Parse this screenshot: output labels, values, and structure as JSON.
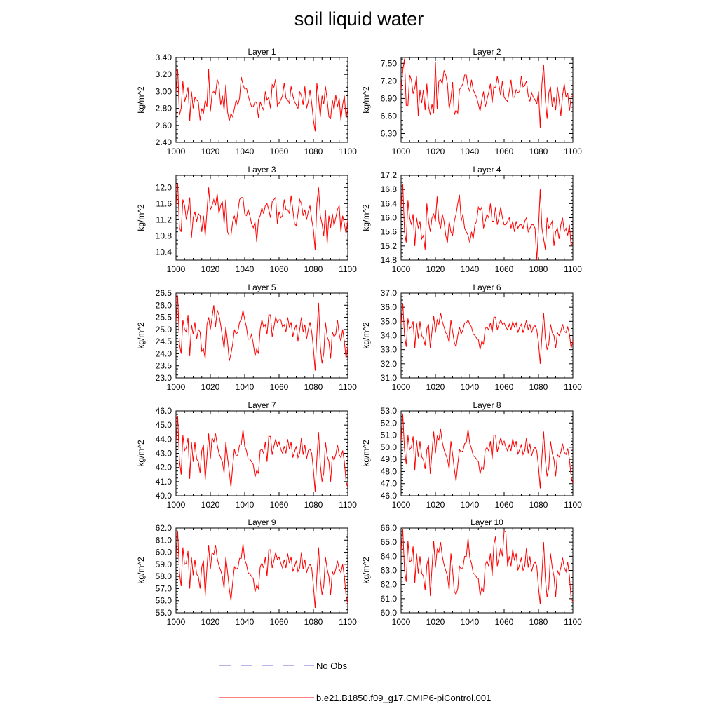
{
  "title": "soil liquid water",
  "chart_data": {
    "type": "line",
    "xlim": [
      1000,
      1100
    ],
    "xticks": [
      1000,
      1020,
      1040,
      1060,
      1080,
      1100
    ],
    "ylabel": "kg/m^2",
    "series_color": "#ff0000",
    "obs_color": "#6b6bd6",
    "panels": [
      {
        "title": "Layer 1",
        "ylim": [
          2.4,
          3.4
        ],
        "yticks": [
          "2.40",
          "2.60",
          "2.80",
          "3.00",
          "3.20",
          "3.40"
        ],
        "x_start": 1000,
        "values": [
          2.98,
          3.26,
          2.72,
          2.8,
          3.12,
          2.88,
          2.95,
          3.05,
          2.65,
          3.0,
          2.8,
          2.93,
          2.9,
          2.88,
          2.66,
          2.8,
          2.74,
          2.9,
          2.82,
          3.26,
          2.76,
          2.98,
          3.0,
          2.97,
          3.14,
          3.08,
          2.84,
          2.95,
          2.78,
          3.08,
          2.76,
          2.65,
          2.74,
          2.7,
          2.8,
          2.9,
          2.84,
          2.92,
          3.17,
          3.08,
          3.03,
          3.04,
          2.95,
          2.88,
          2.82,
          2.82,
          2.88,
          2.86,
          2.69,
          2.88,
          2.82,
          2.78,
          3.0,
          2.9,
          2.93,
          2.8,
          3.08,
          3.05,
          3.15,
          2.83,
          2.86,
          2.9,
          2.95,
          3.1,
          2.92,
          2.9,
          2.86,
          3.06,
          2.95,
          2.88,
          2.84,
          2.8,
          3.0,
          2.95,
          2.84,
          3.06,
          2.8,
          2.88,
          3.02,
          2.86,
          2.66,
          2.53,
          3.1,
          2.92,
          2.7,
          2.95,
          2.85,
          3.06,
          2.9,
          2.7,
          2.68,
          2.9,
          2.78,
          2.96,
          2.82,
          2.92,
          2.66,
          2.84,
          2.95,
          2.68,
          2.8
        ]
      },
      {
        "title": "Layer 2",
        "ylim": [
          6.15,
          7.6
        ],
        "yticks": [
          "6.30",
          "6.60",
          "6.90",
          "7.20",
          "7.50"
        ],
        "x_start": 1000,
        "values": [
          7.05,
          7.38,
          7.58,
          6.78,
          6.78,
          7.3,
          7.22,
          6.98,
          7.08,
          7.28,
          6.6,
          7.05,
          6.82,
          7.05,
          6.7,
          7.15,
          6.76,
          6.62,
          6.8,
          6.65,
          7.52,
          6.72,
          7.2,
          7.22,
          7.15,
          7.38,
          7.3,
          7.15,
          6.72,
          6.9,
          7.18,
          6.62,
          6.7,
          6.65,
          7.05,
          7.1,
          7.15,
          7.3,
          7.3,
          7.1,
          7.02,
          7.22,
          7.05,
          6.98,
          6.92,
          6.8,
          6.68,
          6.88,
          7.02,
          6.75,
          6.88,
          7.0,
          7.15,
          6.82,
          7.1,
          7.08,
          7.28,
          7.12,
          6.95,
          7.2,
          6.92,
          6.88,
          6.85,
          7.02,
          7.22,
          6.92,
          6.92,
          7.05,
          7.0,
          7.02,
          7.28,
          7.1,
          7.12,
          7.2,
          6.95,
          6.85,
          7.0,
          6.92,
          6.88,
          6.8,
          7.02,
          6.4,
          7.15,
          7.48,
          6.88,
          6.55,
          7.0,
          7.1,
          6.75,
          6.92,
          6.7,
          7.1,
          6.88,
          6.6,
          6.95,
          7.15,
          6.92,
          7.0,
          6.68,
          6.92,
          6.95
        ]
      },
      {
        "title": "Layer 3",
        "ylim": [
          10.2,
          12.3
        ],
        "yticks": [
          "10.4",
          "10.8",
          "11.2",
          "11.6",
          "12.0"
        ],
        "x_start": 1000,
        "values": [
          11.55,
          12.1,
          11.0,
          10.9,
          11.7,
          11.55,
          11.2,
          11.45,
          11.75,
          10.75,
          11.25,
          11.4,
          11.15,
          11.35,
          11.3,
          10.9,
          11.3,
          10.8,
          11.4,
          12.0,
          11.45,
          11.55,
          11.7,
          11.55,
          11.85,
          11.35,
          11.55,
          11.65,
          11.1,
          11.7,
          10.9,
          10.8,
          10.8,
          11.15,
          11.3,
          11.05,
          11.4,
          11.7,
          11.75,
          11.75,
          11.35,
          11.3,
          11.45,
          11.3,
          11.1,
          11.0,
          11.15,
          10.65,
          11.2,
          11.3,
          11.5,
          11.35,
          11.55,
          11.6,
          11.45,
          11.25,
          11.65,
          11.7,
          11.75,
          11.1,
          11.4,
          11.25,
          11.3,
          11.7,
          11.45,
          11.45,
          11.35,
          11.8,
          11.45,
          11.1,
          11.05,
          11.35,
          11.7,
          11.6,
          11.3,
          11.45,
          11.2,
          11.4,
          11.55,
          11.2,
          10.95,
          10.45,
          11.6,
          12.0,
          11.3,
          11.1,
          10.8,
          11.45,
          10.6,
          11.3,
          11.0,
          11.35,
          11.05,
          11.25,
          11.45,
          11.55,
          10.9,
          11.3,
          11.1,
          10.85,
          11.2
        ]
      },
      {
        "title": "Layer 4",
        "ylim": [
          14.8,
          17.2
        ],
        "yticks": [
          "14.8",
          "15.2",
          "15.6",
          "16.0",
          "16.4",
          "16.8",
          "17.2"
        ],
        "x_start": 1000,
        "values": [
          16.3,
          16.95,
          15.6,
          15.3,
          16.5,
          16.0,
          15.8,
          16.1,
          15.2,
          16.0,
          15.7,
          15.9,
          15.4,
          15.5,
          15.1,
          16.4,
          15.9,
          15.6,
          16.0,
          16.1,
          15.9,
          16.6,
          15.9,
          15.7,
          16.1,
          15.9,
          15.5,
          15.3,
          15.9,
          15.6,
          15.5,
          15.9,
          16.1,
          16.4,
          16.65,
          15.9,
          16.1,
          15.7,
          15.6,
          15.5,
          15.3,
          15.6,
          15.4,
          15.8,
          15.9,
          16.3,
          16.2,
          16.3,
          15.7,
          15.9,
          16.1,
          16.0,
          16.4,
          15.9,
          15.9,
          16.3,
          15.8,
          16.0,
          16.3,
          16.0,
          15.8,
          15.8,
          15.9,
          16.0,
          15.7,
          15.9,
          15.6,
          15.9,
          15.7,
          15.8,
          15.8,
          15.7,
          15.9,
          16.0,
          15.6,
          15.7,
          15.8,
          15.8,
          15.7,
          14.8,
          15.7,
          16.8,
          15.7,
          15.4,
          15.1,
          16.0,
          15.7,
          15.8,
          15.9,
          15.2,
          15.6,
          15.7,
          15.4,
          15.8,
          16.0,
          15.6,
          15.7,
          15.5,
          15.8,
          15.2,
          15.3
        ]
      },
      {
        "title": "Layer 5",
        "ylim": [
          23.0,
          26.5
        ],
        "yticks": [
          "23.0",
          "23.5",
          "24.0",
          "24.5",
          "25.0",
          "25.5",
          "26.0",
          "26.5"
        ],
        "x_start": 1000,
        "values": [
          25.3,
          26.4,
          24.4,
          24.0,
          25.4,
          25.0,
          24.9,
          25.6,
          23.9,
          25.2,
          24.8,
          25.3,
          24.6,
          25.0,
          24.9,
          24.1,
          24.2,
          23.8,
          25.2,
          25.5,
          25.0,
          25.5,
          26.0,
          25.1,
          25.8,
          25.6,
          25.2,
          24.7,
          24.2,
          25.1,
          24.5,
          23.7,
          24.0,
          24.4,
          25.0,
          24.8,
          24.9,
          25.3,
          25.4,
          25.8,
          25.4,
          25.1,
          24.6,
          24.6,
          24.8,
          24.4,
          23.9,
          24.2,
          24.0,
          25.0,
          25.4,
          25.1,
          25.2,
          24.8,
          25.6,
          25.6,
          24.7,
          25.1,
          25.5,
          25.3,
          25.4,
          25.4,
          25.1,
          25.2,
          24.9,
          25.5,
          25.1,
          25.3,
          24.7,
          25.0,
          25.2,
          24.5,
          25.0,
          25.5,
          24.9,
          25.2,
          24.6,
          25.0,
          25.3,
          24.9,
          24.2,
          23.3,
          24.8,
          26.1,
          24.3,
          23.6,
          24.0,
          25.3,
          24.7,
          24.5,
          23.8,
          24.9,
          24.7,
          24.8,
          25.4,
          24.8,
          24.5,
          25.0,
          24.5,
          23.8,
          24.3
        ]
      },
      {
        "title": "Layer 6",
        "ylim": [
          31.0,
          37.0
        ],
        "yticks": [
          "31.0",
          "32.0",
          "33.0",
          "34.0",
          "35.0",
          "36.0",
          "37.0"
        ],
        "x_start": 1000,
        "values": [
          34.8,
          36.3,
          34.0,
          33.2,
          35.2,
          34.5,
          34.6,
          35.0,
          33.1,
          34.9,
          33.8,
          35.0,
          34.0,
          33.8,
          33.3,
          34.5,
          34.8,
          33.1,
          34.3,
          35.4,
          34.2,
          35.1,
          34.8,
          35.6,
          35.0,
          34.6,
          34.2,
          34.0,
          33.5,
          35.1,
          34.3,
          33.5,
          33.2,
          34.0,
          34.6,
          34.1,
          34.4,
          34.9,
          34.9,
          35.1,
          34.8,
          34.6,
          34.1,
          34.0,
          33.8,
          33.7,
          33.0,
          33.6,
          33.4,
          34.5,
          34.6,
          34.4,
          34.9,
          34.2,
          35.3,
          35.3,
          34.4,
          34.8,
          35.1,
          34.8,
          34.9,
          34.6,
          34.4,
          34.8,
          34.4,
          35.0,
          34.6,
          34.9,
          34.2,
          34.6,
          34.8,
          34.2,
          34.6,
          35.1,
          34.4,
          34.8,
          34.2,
          34.6,
          34.7,
          34.4,
          33.5,
          32.0,
          34.0,
          35.6,
          33.8,
          33.0,
          33.4,
          34.8,
          34.2,
          34.0,
          33.1,
          34.2,
          34.0,
          34.3,
          34.8,
          34.3,
          34.2,
          34.6,
          34.1,
          33.1,
          33.6
        ]
      },
      {
        "title": "Layer 7",
        "ylim": [
          40.0,
          46.0
        ],
        "yticks": [
          "40.0",
          "41.0",
          "42.0",
          "43.0",
          "44.0",
          "45.0",
          "46.0"
        ],
        "x_start": 1000,
        "values": [
          43.8,
          45.6,
          42.5,
          41.5,
          44.3,
          43.2,
          43.4,
          44.1,
          41.2,
          43.8,
          42.4,
          43.8,
          42.6,
          42.4,
          41.6,
          43.2,
          43.6,
          41.1,
          42.7,
          44.4,
          42.6,
          44.1,
          43.8,
          44.4,
          43.6,
          43.0,
          42.7,
          42.4,
          41.6,
          43.8,
          42.7,
          41.7,
          40.6,
          42.1,
          43.3,
          42.8,
          42.9,
          43.6,
          43.6,
          44.7,
          43.5,
          43.2,
          42.6,
          42.6,
          42.4,
          42.2,
          41.3,
          41.8,
          41.6,
          43.2,
          43.3,
          43.0,
          43.8,
          42.4,
          44.2,
          44.2,
          42.9,
          43.5,
          44.0,
          43.5,
          43.8,
          43.3,
          43.0,
          43.5,
          43.0,
          44.0,
          43.3,
          43.8,
          42.7,
          43.1,
          43.5,
          42.7,
          43.0,
          44.1,
          42.9,
          43.6,
          42.6,
          43.2,
          43.3,
          43.0,
          41.8,
          40.3,
          42.6,
          44.5,
          42.2,
          41.0,
          41.6,
          43.8,
          42.8,
          42.4,
          41.0,
          42.8,
          42.5,
          42.9,
          43.6,
          42.9,
          42.7,
          43.2,
          42.4,
          41.0,
          40.6
        ]
      },
      {
        "title": "Layer 8",
        "ylim": [
          46.0,
          53.0
        ],
        "yticks": [
          "46.0",
          "47.0",
          "48.0",
          "49.0",
          "50.0",
          "51.0",
          "52.0",
          "53.0"
        ],
        "x_start": 1000,
        "values": [
          50.5,
          52.7,
          49.8,
          48.6,
          51.0,
          49.8,
          50.0,
          50.9,
          48.1,
          50.6,
          49.2,
          50.5,
          49.2,
          49.0,
          48.2,
          49.8,
          50.2,
          47.8,
          49.6,
          51.3,
          49.5,
          50.9,
          50.6,
          51.5,
          50.4,
          49.8,
          49.4,
          49.0,
          48.2,
          50.5,
          49.4,
          48.2,
          47.2,
          48.6,
          49.8,
          49.6,
          49.7,
          50.3,
          50.4,
          51.5,
          50.3,
          49.9,
          49.3,
          49.2,
          49.0,
          48.8,
          47.8,
          48.4,
          48.2,
          49.8,
          50.0,
          49.7,
          50.5,
          49.0,
          51.0,
          51.0,
          49.6,
          50.2,
          50.8,
          50.2,
          50.5,
          50.0,
          49.7,
          50.2,
          49.7,
          50.7,
          50.0,
          50.5,
          49.4,
          49.8,
          50.2,
          49.4,
          49.7,
          50.8,
          49.5,
          50.3,
          49.3,
          49.8,
          50.0,
          49.7,
          48.4,
          46.6,
          49.2,
          51.3,
          48.9,
          47.6,
          48.3,
          50.5,
          49.5,
          49.0,
          47.6,
          49.4,
          49.2,
          49.6,
          50.3,
          49.6,
          49.4,
          49.9,
          49.0,
          47.6,
          47.0
        ]
      },
      {
        "title": "Layer 9",
        "ylim": [
          55.0,
          62.0
        ],
        "yticks": [
          "55.0",
          "56.0",
          "57.0",
          "58.0",
          "59.0",
          "60.0",
          "61.0",
          "62.0"
        ],
        "x_start": 1000,
        "values": [
          59.6,
          61.7,
          58.3,
          57.2,
          60.4,
          59.0,
          59.1,
          60.1,
          57.0,
          59.6,
          58.1,
          59.4,
          58.2,
          58.0,
          57.0,
          58.8,
          59.3,
          56.4,
          58.7,
          60.6,
          58.6,
          60.0,
          59.8,
          60.6,
          59.5,
          58.9,
          58.5,
          58.0,
          57.0,
          59.6,
          58.4,
          57.0,
          56.0,
          57.5,
          58.8,
          58.6,
          58.7,
          59.5,
          59.5,
          60.7,
          59.4,
          59.0,
          58.3,
          58.2,
          58.0,
          57.8,
          56.7,
          57.3,
          57.0,
          58.8,
          59.1,
          58.7,
          59.6,
          58.0,
          60.2,
          60.2,
          58.7,
          59.3,
          60.0,
          59.4,
          59.6,
          59.1,
          58.7,
          59.4,
          58.7,
          59.9,
          59.1,
          59.6,
          58.4,
          58.8,
          59.3,
          58.4,
          58.7,
          60.0,
          58.6,
          59.4,
          58.3,
          58.8,
          59.0,
          58.7,
          57.2,
          55.4,
          58.1,
          60.4,
          57.8,
          56.5,
          57.2,
          59.6,
          58.6,
          58.0,
          56.5,
          58.4,
          58.1,
          58.6,
          59.3,
          58.6,
          58.3,
          59.0,
          58.0,
          56.4,
          55.8
        ]
      },
      {
        "title": "Layer 10",
        "ylim": [
          60.0,
          66.0
        ],
        "yticks": [
          "60.0",
          "61.0",
          "62.0",
          "63.0",
          "64.0",
          "65.0",
          "66.0"
        ],
        "x_start": 1000,
        "values": [
          64.4,
          65.9,
          63.0,
          62.2,
          65.1,
          63.6,
          63.7,
          64.7,
          62.1,
          64.2,
          62.8,
          64.0,
          62.8,
          62.6,
          61.6,
          63.4,
          63.9,
          61.2,
          63.2,
          65.1,
          63.2,
          64.5,
          64.3,
          65.0,
          64.0,
          63.4,
          63.0,
          62.6,
          61.6,
          64.2,
          63.0,
          61.5,
          61.3,
          61.7,
          63.3,
          63.1,
          63.2,
          64.0,
          64.0,
          65.3,
          63.9,
          63.5,
          62.8,
          62.7,
          62.5,
          62.4,
          61.2,
          61.8,
          61.5,
          63.4,
          63.7,
          63.3,
          64.2,
          62.6,
          64.8,
          65.4,
          63.3,
          63.9,
          64.6,
          64.0,
          65.8,
          65.7,
          63.3,
          64.0,
          63.3,
          64.5,
          63.7,
          64.2,
          63.0,
          63.4,
          63.9,
          63.0,
          63.3,
          64.6,
          63.2,
          64.0,
          62.9,
          63.4,
          63.6,
          63.3,
          61.8,
          60.6,
          62.7,
          65.0,
          62.4,
          61.1,
          61.8,
          64.2,
          63.2,
          62.6,
          61.1,
          63.0,
          62.7,
          63.2,
          63.9,
          63.2,
          62.9,
          63.6,
          62.6,
          61.0,
          60.8
        ]
      }
    ]
  },
  "legend": {
    "obs_label": "No Obs",
    "model_label": "b.e21.B1850.f09_g17.CMIP6-piControl.001"
  }
}
